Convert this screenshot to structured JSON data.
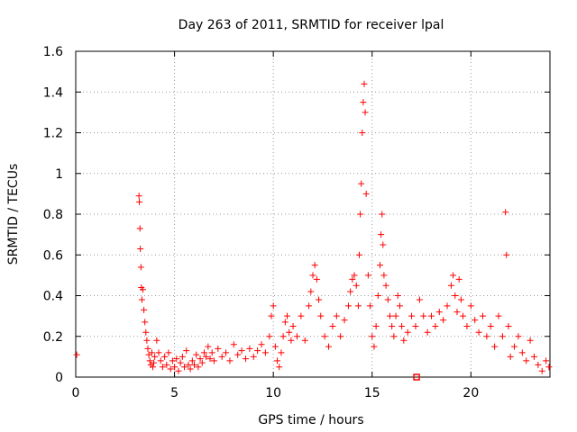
{
  "chart_data": {
    "type": "scatter",
    "title": "Day 263 of 2011, SRMTID for receiver lpal",
    "xlabel": "GPS time / hours",
    "ylabel": "SRMTID / TECUs",
    "xlim": [
      0,
      24
    ],
    "ylim": [
      0,
      1.6
    ],
    "xticks": [
      0,
      5,
      10,
      15,
      20
    ],
    "xtick_labels": [
      "0",
      "5",
      "10",
      "15",
      "20"
    ],
    "yticks": [
      0,
      0.2,
      0.4,
      0.6,
      0.8,
      1.0,
      1.2,
      1.4,
      1.6
    ],
    "ytick_labels": [
      "0",
      "0.2",
      "0.4",
      "0.6",
      "0.8",
      "1",
      "1.2",
      "1.4",
      "1.6"
    ],
    "grid": true,
    "marker": "+",
    "color": "#ff0000",
    "series": [
      {
        "name": "SRMTID",
        "x": [
          0.05,
          3.2,
          3.22,
          3.25,
          3.27,
          3.3,
          3.32,
          3.35,
          3.4,
          3.45,
          3.5,
          3.55,
          3.6,
          3.65,
          3.7,
          3.75,
          3.8,
          3.85,
          3.9,
          3.95,
          4.0,
          4.1,
          4.2,
          4.3,
          4.4,
          4.5,
          4.6,
          4.7,
          4.8,
          4.9,
          5.0,
          5.1,
          5.2,
          5.3,
          5.4,
          5.5,
          5.6,
          5.7,
          5.8,
          5.9,
          6.0,
          6.1,
          6.2,
          6.3,
          6.4,
          6.5,
          6.6,
          6.7,
          6.8,
          6.9,
          7.0,
          7.2,
          7.4,
          7.6,
          7.8,
          8.0,
          8.2,
          8.4,
          8.6,
          8.8,
          9.0,
          9.2,
          9.4,
          9.6,
          9.8,
          9.9,
          10.0,
          10.1,
          10.2,
          10.3,
          10.4,
          10.5,
          10.6,
          10.7,
          10.8,
          10.9,
          11.0,
          11.2,
          11.4,
          11.6,
          11.8,
          11.9,
          12.0,
          12.1,
          12.2,
          12.3,
          12.4,
          12.6,
          12.8,
          13.0,
          13.2,
          13.4,
          13.6,
          13.8,
          13.9,
          14.0,
          14.1,
          14.2,
          14.3,
          14.35,
          14.4,
          14.45,
          14.5,
          14.55,
          14.6,
          14.65,
          14.7,
          14.8,
          14.9,
          15.0,
          15.1,
          15.2,
          15.3,
          15.4,
          15.45,
          15.5,
          15.55,
          15.6,
          15.7,
          15.8,
          15.9,
          16.0,
          16.1,
          16.2,
          16.3,
          16.4,
          16.5,
          16.6,
          16.8,
          17.0,
          17.2,
          17.4,
          17.6,
          17.8,
          18.0,
          18.2,
          18.4,
          18.6,
          18.8,
          19.0,
          19.1,
          19.2,
          19.3,
          19.4,
          19.5,
          19.6,
          19.8,
          20.0,
          20.2,
          20.4,
          20.6,
          20.8,
          21.0,
          21.2,
          21.4,
          21.6,
          21.75,
          21.8,
          21.9,
          22.0,
          22.2,
          22.4,
          22.6,
          22.8,
          23.0,
          23.2,
          23.4,
          23.6,
          23.8,
          23.95
        ],
        "y": [
          0.11,
          0.89,
          0.86,
          0.73,
          0.63,
          0.54,
          0.44,
          0.38,
          0.43,
          0.33,
          0.27,
          0.22,
          0.18,
          0.14,
          0.11,
          0.08,
          0.06,
          0.12,
          0.05,
          0.07,
          0.1,
          0.18,
          0.12,
          0.08,
          0.05,
          0.1,
          0.06,
          0.12,
          0.04,
          0.08,
          0.05,
          0.09,
          0.03,
          0.07,
          0.1,
          0.05,
          0.13,
          0.06,
          0.04,
          0.08,
          0.06,
          0.11,
          0.05,
          0.09,
          0.07,
          0.12,
          0.1,
          0.15,
          0.09,
          0.12,
          0.08,
          0.14,
          0.1,
          0.12,
          0.08,
          0.16,
          0.11,
          0.13,
          0.09,
          0.14,
          0.1,
          0.13,
          0.16,
          0.12,
          0.2,
          0.3,
          0.35,
          0.15,
          0.08,
          0.05,
          0.12,
          0.2,
          0.27,
          0.3,
          0.22,
          0.18,
          0.25,
          0.2,
          0.3,
          0.18,
          0.35,
          0.42,
          0.5,
          0.55,
          0.48,
          0.38,
          0.3,
          0.2,
          0.15,
          0.25,
          0.3,
          0.2,
          0.28,
          0.35,
          0.42,
          0.48,
          0.5,
          0.45,
          0.35,
          0.6,
          0.8,
          0.95,
          1.2,
          1.35,
          1.44,
          1.3,
          0.9,
          0.5,
          0.35,
          0.2,
          0.15,
          0.25,
          0.4,
          0.55,
          0.7,
          0.8,
          0.65,
          0.5,
          0.45,
          0.38,
          0.3,
          0.25,
          0.2,
          0.3,
          0.4,
          0.35,
          0.25,
          0.18,
          0.22,
          0.3,
          0.25,
          0.38,
          0.3,
          0.22,
          0.3,
          0.25,
          0.32,
          0.28,
          0.35,
          0.45,
          0.5,
          0.4,
          0.32,
          0.48,
          0.38,
          0.3,
          0.25,
          0.35,
          0.28,
          0.22,
          0.3,
          0.2,
          0.25,
          0.15,
          0.3,
          0.2,
          0.81,
          0.6,
          0.25,
          0.1,
          0.15,
          0.2,
          0.12,
          0.08,
          0.18,
          0.1,
          0.06,
          0.03,
          0.08,
          0.05
        ]
      }
    ],
    "outliers_note": "",
    "square_markers": [
      {
        "x": 17.25,
        "y": 0.0
      }
    ]
  }
}
